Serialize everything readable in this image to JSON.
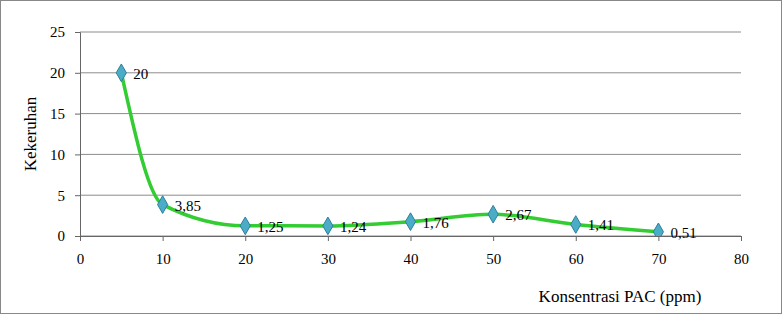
{
  "chart_data": {
    "type": "line",
    "x_label": "Konsentrasi PAC (ppm)",
    "y_label": "Kekeruhan",
    "x": [
      5,
      10,
      20,
      30,
      40,
      50,
      60,
      70
    ],
    "values": [
      20,
      3.85,
      1.25,
      1.24,
      1.76,
      2.67,
      1.41,
      0.51
    ],
    "value_labels": [
      "20",
      "3,85",
      "1,25",
      "1,24",
      "1,76",
      "2,67",
      "1,41",
      "0,51"
    ],
    "color": "#33cc33",
    "marker": "diamond",
    "line_style": "solid",
    "data_labels": true,
    "grid": true,
    "xlim": [
      0,
      80
    ],
    "xticks": [
      0,
      10,
      20,
      30,
      40,
      50,
      60,
      70,
      80
    ],
    "ylim": [
      0,
      25
    ],
    "yticks": [
      0,
      5,
      10,
      15,
      20,
      25
    ]
  }
}
